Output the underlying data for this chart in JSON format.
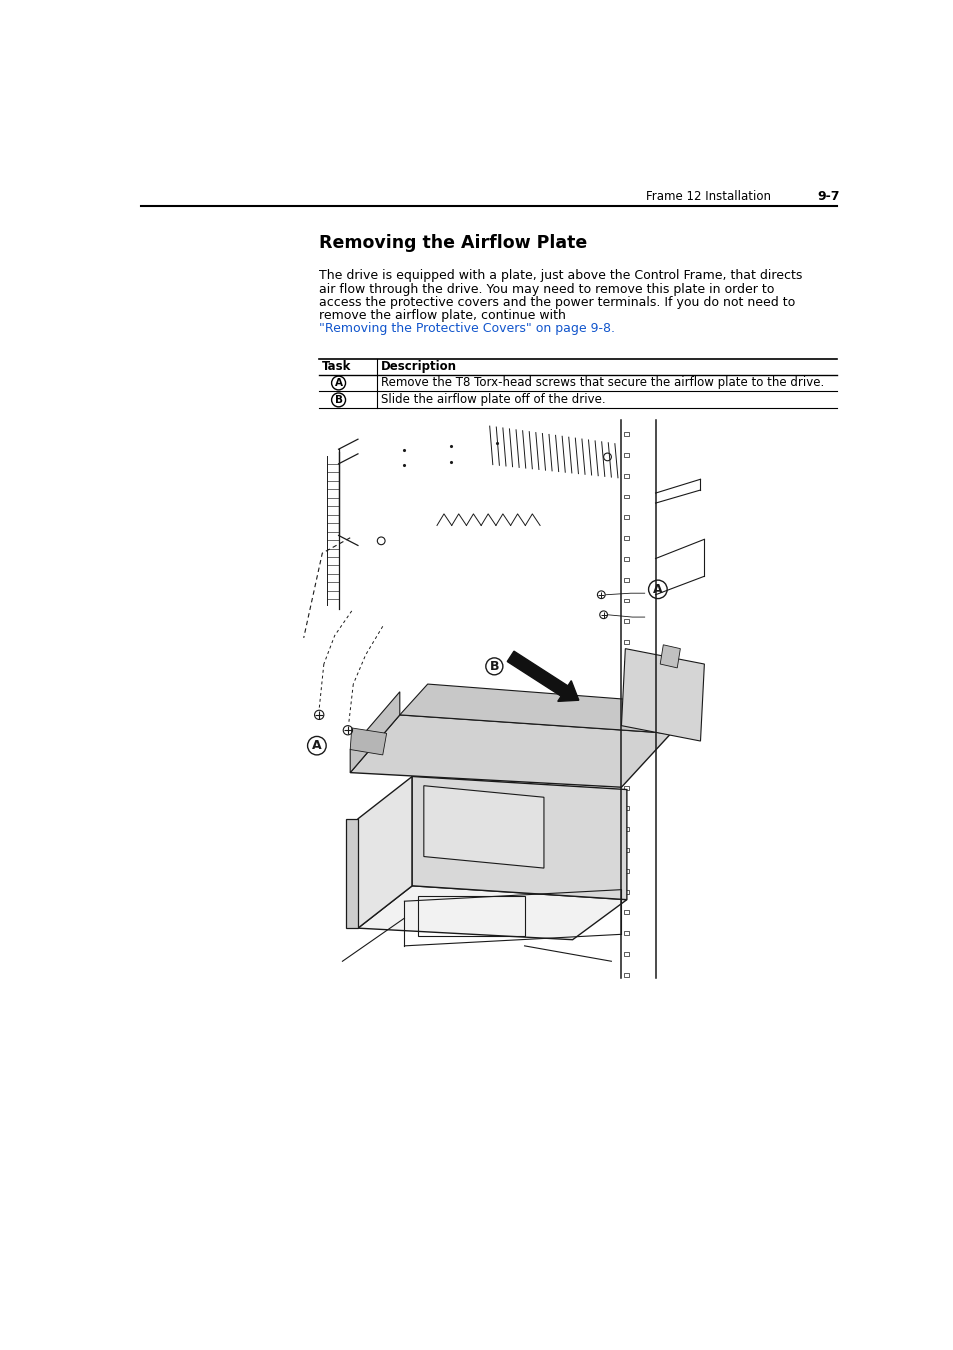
{
  "page_header_left": "Frame 12 Installation",
  "page_header_right": "9-7",
  "section_title": "Removing the Airflow Plate",
  "body_line1": "The drive is equipped with a plate, just above the Control Frame, that directs",
  "body_line2": "air flow through the drive. You may need to remove this plate in order to",
  "body_line3": "access the protective covers and the power terminals. If you do not need to",
  "body_line4": "remove the airflow plate, continue with ",
  "link_line1": "\"Removing the Protective Covers\" on page 9-8.",
  "table_col1_header": "Task",
  "table_col2_header": "Description",
  "row_a_text": "Remove the T8 Torx-head screws that secure the airflow plate to the drive.",
  "row_b_text": "Slide the airflow plate off of the drive.",
  "bg_color": "#ffffff",
  "text_color": "#000000",
  "link_color": "#1155cc",
  "lc": "#1a1a1a"
}
